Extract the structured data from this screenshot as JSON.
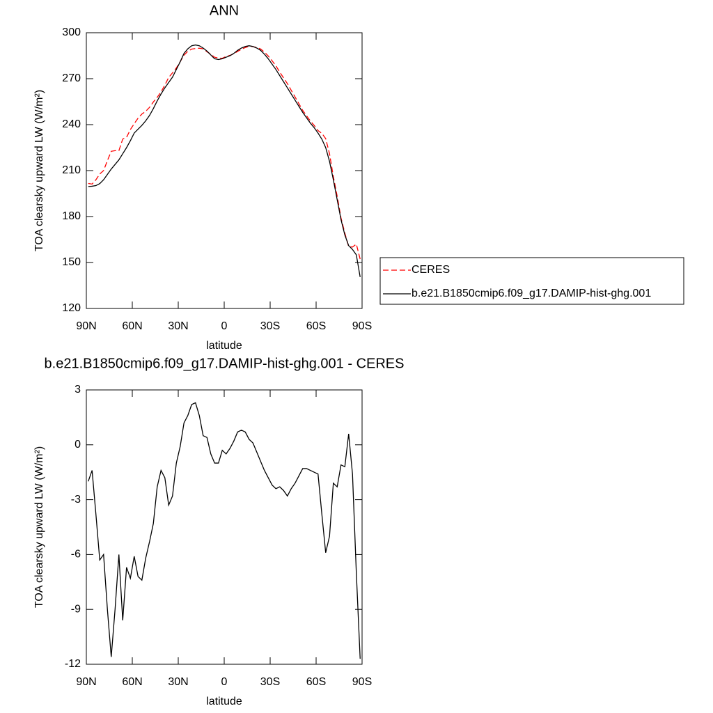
{
  "chart_data": [
    {
      "type": "line",
      "title": "ANN",
      "xlabel": "latitude",
      "ylabel": "TOA clearsky upward LW (W/m²)",
      "x": [
        88.75,
        86.25,
        83.75,
        81.25,
        78.75,
        76.25,
        73.75,
        71.25,
        68.75,
        66.25,
        63.75,
        61.25,
        58.75,
        56.25,
        53.75,
        51.25,
        48.75,
        46.25,
        43.75,
        41.25,
        38.75,
        36.25,
        33.75,
        31.25,
        28.75,
        26.25,
        23.75,
        21.25,
        18.75,
        16.25,
        13.75,
        11.25,
        8.75,
        6.25,
        3.75,
        1.25,
        -1.25,
        -3.75,
        -6.25,
        -8.75,
        -11.25,
        -13.75,
        -16.25,
        -18.75,
        -21.25,
        -23.75,
        -26.25,
        -28.75,
        -31.25,
        -33.75,
        -36.25,
        -38.75,
        -41.25,
        -43.75,
        -46.25,
        -48.75,
        -51.25,
        -53.75,
        -56.25,
        -58.75,
        -61.25,
        -63.75,
        -66.25,
        -68.75,
        -71.25,
        -73.75,
        -76.25,
        -78.75,
        -81.25,
        -83.75,
        -86.25,
        -88.75
      ],
      "series": [
        {
          "name": "CERES",
          "color": "#ff0000",
          "line_style": "dashed",
          "values": [
            201.6,
            201.2,
            204.0,
            207.8,
            210,
            216.5,
            222.6,
            223,
            223,
            230.6,
            231.7,
            236.8,
            240.6,
            244.2,
            246.9,
            248.7,
            251.3,
            254.8,
            257.8,
            261.4,
            265.8,
            270.8,
            273.8,
            277,
            281.1,
            285.3,
            287.9,
            289.3,
            289.7,
            289.9,
            289.5,
            287.6,
            286,
            284.0,
            283.5,
            283.3,
            284.5,
            285.2,
            286.3,
            287.8,
            289.2,
            290.3,
            291.2,
            290.9,
            290.4,
            289.4,
            287.4,
            284.8,
            281.7,
            278.4,
            274.3,
            270.5,
            266.8,
            262.4,
            258.1,
            253.7,
            249.3,
            245.8,
            242.4,
            239.5,
            236.1,
            234.3,
            230.9,
            221,
            206.1,
            193.3,
            179.1,
            169.2,
            160.4,
            160.1,
            162,
            152.2
          ]
        },
        {
          "name": "b.e21.B1850cmip6.f09_g17.DAMIP-hist-ghg.001",
          "color": "#000000",
          "line_style": "solid",
          "values": [
            199.6,
            199.8,
            200.2,
            201.5,
            204,
            207.5,
            211,
            214,
            217,
            221,
            225,
            229.5,
            234.5,
            237,
            239.5,
            242.5,
            246,
            250.5,
            255.5,
            260,
            264,
            267.5,
            271,
            276,
            281,
            286.5,
            289.5,
            291.5,
            292,
            291.5,
            290,
            288,
            285.5,
            283,
            282.5,
            283,
            284,
            285,
            286.5,
            288.5,
            290,
            291,
            291.5,
            291,
            290,
            288.5,
            286,
            283,
            279.5,
            276,
            272,
            268,
            264,
            260,
            256,
            252,
            248,
            244.5,
            241,
            238,
            234.5,
            230.5,
            225,
            216,
            204,
            191,
            178,
            168,
            161,
            158.5,
            155,
            140.5
          ]
        }
      ],
      "xlim": [
        90,
        -90
      ],
      "xticks": [
        {
          "value": 90,
          "label": "90N"
        },
        {
          "value": 60,
          "label": "60N"
        },
        {
          "value": 30,
          "label": "30N"
        },
        0,
        {
          "value": -30,
          "label": "30S"
        },
        {
          "value": -60,
          "label": "60S"
        },
        {
          "value": -90,
          "label": "90S"
        }
      ],
      "ylim": [
        120,
        300
      ],
      "yticks": [
        120,
        150,
        180,
        210,
        240,
        270,
        300
      ],
      "legend": "right"
    },
    {
      "type": "line",
      "title": "b.e21.B1850cmip6.f09_g17.DAMIP-hist-ghg.001 - CERES",
      "xlabel": "latitude",
      "ylabel": "TOA clearsky upward LW (W/m²)",
      "x": [
        88.75,
        86.25,
        83.75,
        81.25,
        78.75,
        76.25,
        73.75,
        71.25,
        68.75,
        66.25,
        63.75,
        61.25,
        58.75,
        56.25,
        53.75,
        51.25,
        48.75,
        46.25,
        43.75,
        41.25,
        38.75,
        36.25,
        33.75,
        31.25,
        28.75,
        26.25,
        23.75,
        21.25,
        18.75,
        16.25,
        13.75,
        11.25,
        8.75,
        6.25,
        3.75,
        1.25,
        -1.25,
        -3.75,
        -6.25,
        -8.75,
        -11.25,
        -13.75,
        -16.25,
        -18.75,
        -21.25,
        -23.75,
        -26.25,
        -28.75,
        -31.25,
        -33.75,
        -36.25,
        -38.75,
        -41.25,
        -43.75,
        -46.25,
        -48.75,
        -51.25,
        -53.75,
        -56.25,
        -58.75,
        -61.25,
        -63.75,
        -66.25,
        -68.75,
        -71.25,
        -73.75,
        -76.25,
        -78.75,
        -81.25,
        -83.75,
        -86.25,
        -88.75
      ],
      "values": [
        -2.0,
        -1.4,
        -3.8,
        -6.3,
        -6.0,
        -9.0,
        -11.6,
        -9.0,
        -6.0,
        -9.6,
        -6.7,
        -7.3,
        -6.1,
        -7.2,
        -7.4,
        -6.2,
        -5.3,
        -4.3,
        -2.3,
        -1.4,
        -1.8,
        -3.3,
        -2.8,
        -1.0,
        -0.1,
        1.2,
        1.6,
        2.2,
        2.3,
        1.6,
        0.5,
        0.4,
        -0.5,
        -1.0,
        -1.0,
        -0.3,
        -0.5,
        -0.2,
        0.2,
        0.7,
        0.8,
        0.7,
        0.3,
        0.1,
        -0.4,
        -0.9,
        -1.4,
        -1.8,
        -2.2,
        -2.4,
        -2.3,
        -2.5,
        -2.8,
        -2.4,
        -2.1,
        -1.7,
        -1.3,
        -1.3,
        -1.4,
        -1.5,
        -1.6,
        -3.8,
        -5.9,
        -5.0,
        -2.1,
        -2.3,
        -1.1,
        -1.2,
        0.6,
        -1.6,
        -7.0,
        -11.7
      ],
      "color": "#000000",
      "line_style": "solid",
      "xlim": [
        90,
        -90
      ],
      "xticks": [
        {
          "value": 90,
          "label": "90N"
        },
        {
          "value": 60,
          "label": "60N"
        },
        {
          "value": 30,
          "label": "30N"
        },
        0,
        {
          "value": -30,
          "label": "30S"
        },
        {
          "value": -60,
          "label": "60S"
        },
        {
          "value": -90,
          "label": "90S"
        }
      ],
      "ylim": [
        -12,
        3
      ],
      "yticks": [
        -12,
        -9,
        -6,
        -3,
        0,
        3
      ]
    }
  ]
}
